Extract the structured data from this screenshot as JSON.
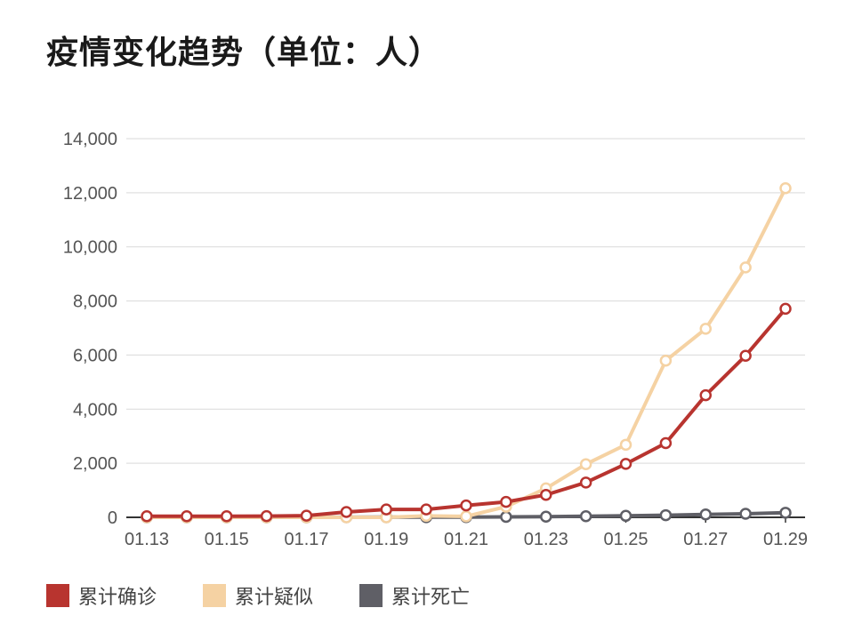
{
  "title": "疫情变化趋势（单位：人）",
  "chart_data": {
    "type": "line",
    "title": "疫情变化趋势（单位：人）",
    "xlabel": "",
    "ylabel": "",
    "x": [
      "01.13",
      "01.14",
      "01.15",
      "01.16",
      "01.17",
      "01.18",
      "01.19",
      "01.20",
      "01.21",
      "01.22",
      "01.23",
      "01.24",
      "01.25",
      "01.26",
      "01.27",
      "01.28",
      "01.29"
    ],
    "x_tick_labels": [
      "01.13",
      "01.15",
      "01.17",
      "01.19",
      "01.21",
      "01.23",
      "01.25",
      "01.27",
      "01.29"
    ],
    "y_ticks": [
      "0",
      "2,000",
      "4,000",
      "6,000",
      "8,000",
      "10,000",
      "12,000",
      "14,000"
    ],
    "ylim": [
      0,
      14000
    ],
    "grid": true,
    "legend_position": "bottom-left",
    "series": [
      {
        "name": "累计确诊",
        "color": "#b8342f",
        "values": [
          41,
          41,
          41,
          45,
          62,
          198,
          291,
          291,
          440,
          571,
          830,
          1287,
          1975,
          2744,
          4515,
          5974,
          7711
        ]
      },
      {
        "name": "累计疑似",
        "color": "#f5d2a3",
        "values": [
          0,
          0,
          0,
          0,
          0,
          0,
          0,
          54,
          37,
          393,
          1072,
          1965,
          2684,
          5794,
          6973,
          9239,
          12167
        ]
      },
      {
        "name": "累计死亡",
        "color": "#5f5f66",
        "values": [
          1,
          1,
          1,
          2,
          2,
          3,
          6,
          6,
          9,
          17,
          25,
          41,
          56,
          80,
          106,
          132,
          170
        ]
      }
    ]
  }
}
